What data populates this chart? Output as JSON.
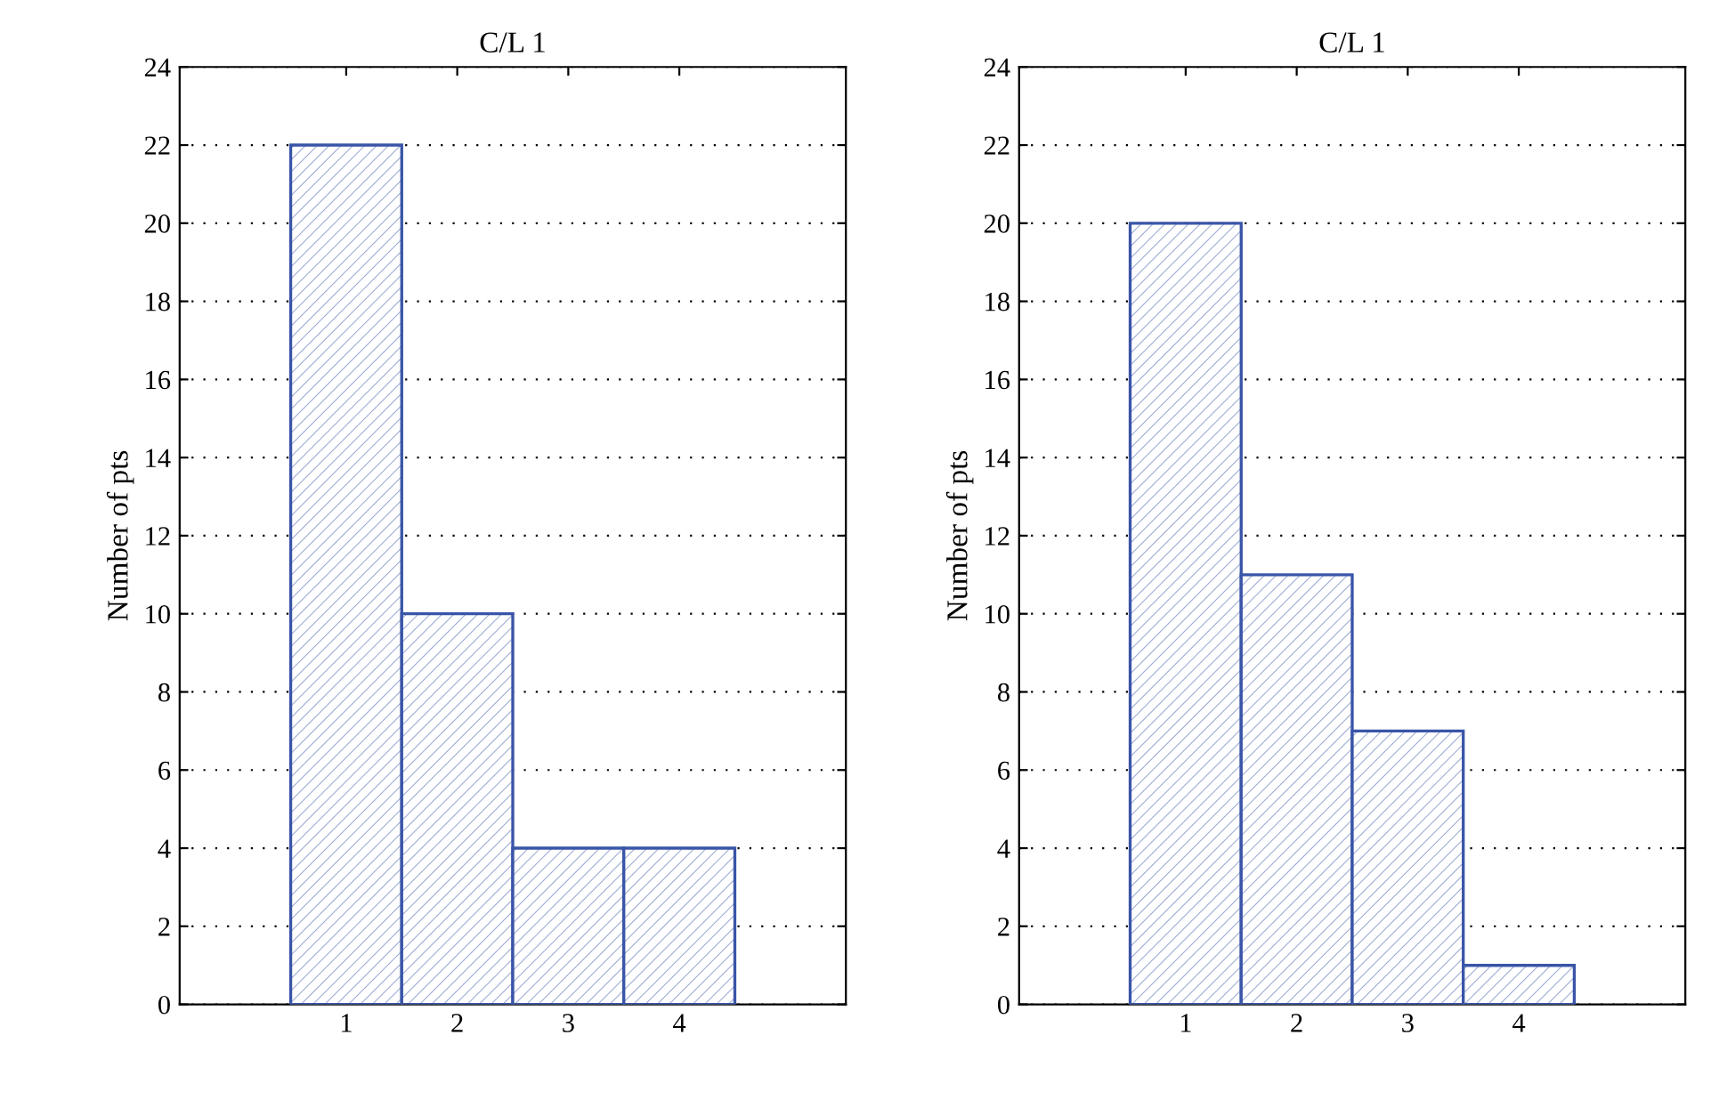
{
  "chart_data": [
    {
      "type": "bar",
      "title": "C/L 1",
      "ylabel": "Number of pts",
      "x": [
        1,
        2,
        3,
        4
      ],
      "values": [
        22,
        10,
        4,
        4
      ],
      "color": "#3a55a8",
      "xlim": [
        -0.5,
        5.5
      ],
      "xticks": [
        1,
        2,
        3,
        4
      ],
      "ylim": [
        0,
        24
      ],
      "yticks": [
        0,
        2,
        4,
        6,
        8,
        10,
        12,
        14,
        16,
        18,
        20,
        22,
        24
      ],
      "grid": "y"
    },
    {
      "type": "bar",
      "title": "C/L 1",
      "ylabel": "Number of pts",
      "x": [
        1,
        2,
        3,
        4
      ],
      "values": [
        20,
        11,
        7,
        1
      ],
      "color": "#3a55a8",
      "xlim": [
        -0.5,
        5.5
      ],
      "xticks": [
        1,
        2,
        3,
        4
      ],
      "ylim": [
        0,
        24
      ],
      "yticks": [
        0,
        2,
        4,
        6,
        8,
        10,
        12,
        14,
        16,
        18,
        20,
        22,
        24
      ],
      "grid": "y"
    }
  ]
}
